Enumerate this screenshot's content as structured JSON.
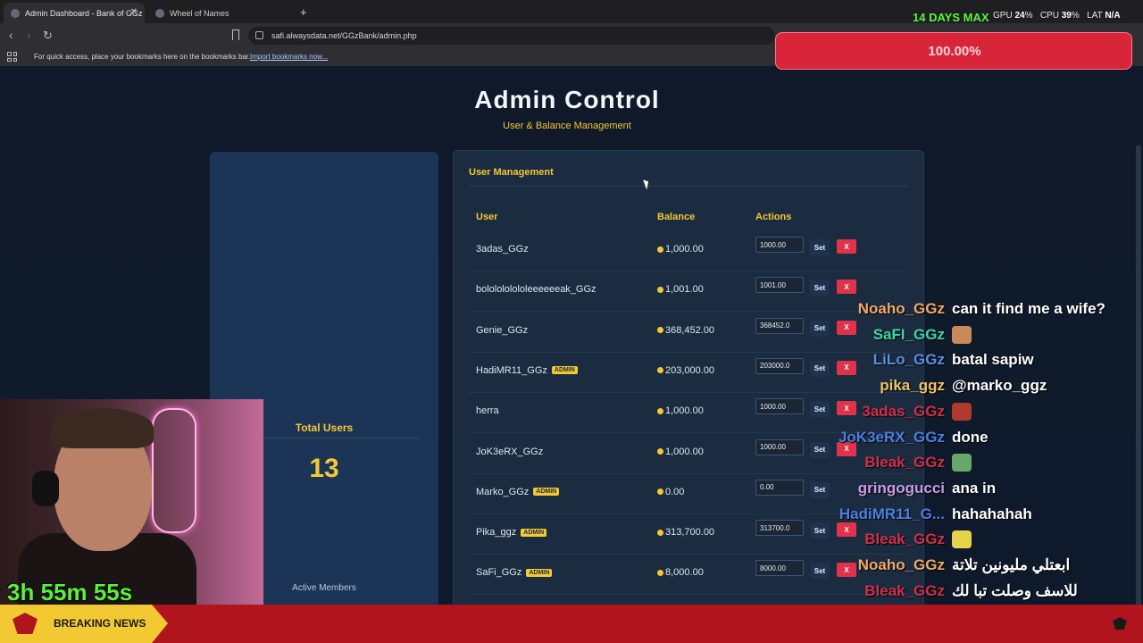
{
  "browser": {
    "tabs": [
      {
        "label": "Admin Dashboard - Bank of GGz",
        "active": true
      },
      {
        "label": "Wheel of Names",
        "active": false
      }
    ],
    "url": "safi.alwaysdata.net/GGzBank/admin.php",
    "bookmarks_message": "For quick access, place your bookmarks here on the bookmarks bar.",
    "import_link": "Import bookmarks now..."
  },
  "page": {
    "title": "Admin Control",
    "subtitle": "User & Balance Management"
  },
  "stats": {
    "label": "Total Users",
    "value": "13",
    "sub": "Active Members"
  },
  "user_management": {
    "title": "User Management",
    "headers": {
      "user": "User",
      "balance": "Balance",
      "actions": "Actions"
    },
    "set_label": "Set",
    "remove_label": "X",
    "admin_badge": "ADMIN",
    "users": [
      {
        "name": "3adas_GGz",
        "admin": false,
        "balance": "1,000.00",
        "input": "1000.00",
        "removable": true
      },
      {
        "name": "bololololololeeeeeeak_GGz",
        "admin": false,
        "balance": "1,001.00",
        "input": "1001.00",
        "removable": true
      },
      {
        "name": "Genie_GGz",
        "admin": false,
        "balance": "368,452.00",
        "input": "368452.0",
        "removable": true
      },
      {
        "name": "HadiMR11_GGz",
        "admin": true,
        "balance": "203,000.00",
        "input": "203000.0",
        "removable": true
      },
      {
        "name": "herra",
        "admin": false,
        "balance": "1,000.00",
        "input": "1000.00",
        "removable": true
      },
      {
        "name": "JoK3eRX_GGz",
        "admin": false,
        "balance": "1,000.00",
        "input": "1000.00",
        "removable": true
      },
      {
        "name": "Marko_GGz",
        "admin": true,
        "balance": "0.00",
        "input": "0.00",
        "removable": false
      },
      {
        "name": "Pika_ggz",
        "admin": true,
        "balance": "313,700.00",
        "input": "313700.0",
        "removable": true
      },
      {
        "name": "SaFi_GGz",
        "admin": true,
        "balance": "8,000.00",
        "input": "8000.00",
        "removable": true
      }
    ]
  },
  "overlay": {
    "days": "14 DAYS MAX",
    "hud": {
      "gpu_label": "GPU",
      "gpu": "24",
      "cpu_label": "CPU",
      "cpu": "39",
      "lat_label": "LAT",
      "lat": "N/A",
      "percent": "%"
    },
    "progress": "100.00%",
    "timer": "3h 55m 55s",
    "ticker": "BREAKING NEWS",
    "chat": [
      {
        "name": "Noaho_GGz",
        "color": "#f0a868",
        "msg": "can it find me a wife?"
      },
      {
        "name": "SaFI_GGz",
        "color": "#3ed6a8",
        "msg": ""
      },
      {
        "name": "LiLo_GGz",
        "color": "#5b8fe0",
        "msg": "batal sapiw"
      },
      {
        "name": "pika_ggz",
        "color": "#f0c26a",
        "msg": "@marko_ggz"
      },
      {
        "name": "3adas_GGz",
        "color": "#d0304a",
        "msg": ""
      },
      {
        "name": "JoK3eRX_GGz",
        "color": "#4c7fe0",
        "msg": "done"
      },
      {
        "name": "Bleak_GGz",
        "color": "#d0304a",
        "msg": ""
      },
      {
        "name": "gringogucci",
        "color": "#c89be6",
        "msg": "ana in"
      },
      {
        "name": "HadiMR11_G...",
        "color": "#4c7fe0",
        "msg": "hahahahah"
      },
      {
        "name": "Bleak_GGz",
        "color": "#d0304a",
        "msg": ""
      },
      {
        "name": "Noaho_GGz",
        "color": "#f0a868",
        "msg": "ابعتلي مليونين تلاتة"
      },
      {
        "name": "Bleak_GGz",
        "color": "#d0304a",
        "msg": "للاسف وصلت تبا لك"
      }
    ]
  }
}
